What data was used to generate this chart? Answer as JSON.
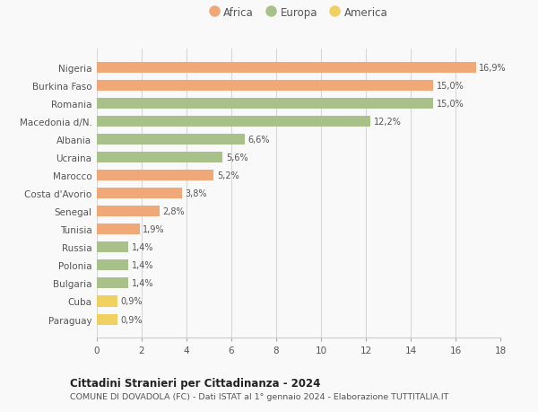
{
  "countries": [
    "Nigeria",
    "Burkina Faso",
    "Romania",
    "Macedonia d/N.",
    "Albania",
    "Ucraina",
    "Marocco",
    "Costa d'Avorio",
    "Senegal",
    "Tunisia",
    "Russia",
    "Polonia",
    "Bulgaria",
    "Cuba",
    "Paraguay"
  ],
  "values": [
    16.9,
    15.0,
    15.0,
    12.2,
    6.6,
    5.6,
    5.2,
    3.8,
    2.8,
    1.9,
    1.4,
    1.4,
    1.4,
    0.9,
    0.9
  ],
  "labels": [
    "16,9%",
    "15,0%",
    "15,0%",
    "12,2%",
    "6,6%",
    "5,6%",
    "5,2%",
    "3,8%",
    "2,8%",
    "1,9%",
    "1,4%",
    "1,4%",
    "1,4%",
    "0,9%",
    "0,9%"
  ],
  "continent": [
    "Africa",
    "Africa",
    "Europa",
    "Europa",
    "Europa",
    "Europa",
    "Africa",
    "Africa",
    "Africa",
    "Africa",
    "Europa",
    "Europa",
    "Europa",
    "America",
    "America"
  ],
  "colors": {
    "Africa": "#F0A878",
    "Europa": "#A8C08A",
    "America": "#F0D060"
  },
  "legend_order": [
    "Africa",
    "Europa",
    "America"
  ],
  "title1": "Cittadini Stranieri per Cittadinanza - 2024",
  "title2": "COMUNE DI DOVADOLA (FC) - Dati ISTAT al 1° gennaio 2024 - Elaborazione TUTTITALIA.IT",
  "xlim": [
    0,
    18
  ],
  "xticks": [
    0,
    2,
    4,
    6,
    8,
    10,
    12,
    14,
    16,
    18
  ],
  "background_color": "#f9f9f9",
  "grid_color": "#d8d8d8",
  "bar_height": 0.6
}
